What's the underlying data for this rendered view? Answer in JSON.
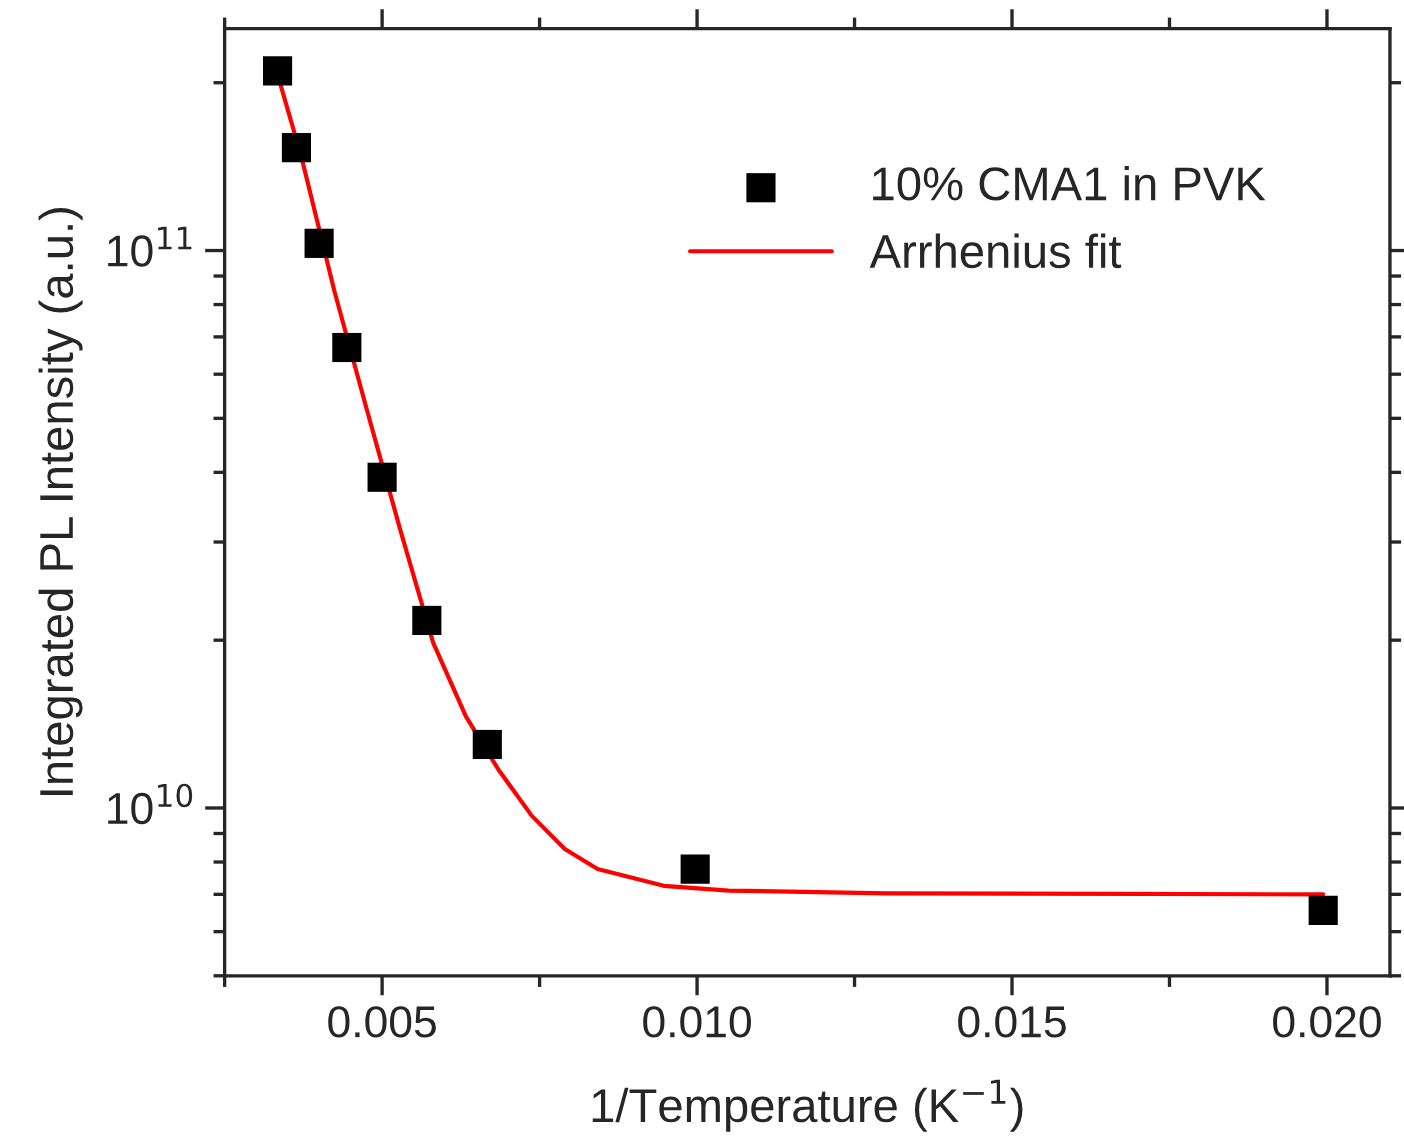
{
  "chart_data": {
    "type": "scatter",
    "xlabel": "1/Temperature (K$^{−1}$)",
    "ylabel": "Integrated PL Intensity (a.u.)",
    "series": [
      {
        "name": "10% CMA1 in PVK",
        "color": "#000000",
        "marker": "square",
        "x": [
          0.00334,
          0.00364,
          0.004,
          0.00444,
          0.005,
          0.00571,
          0.00667,
          0.00997,
          0.01994
        ],
        "values": [
          210000000000.0,
          153000000000.0,
          103000000000.0,
          67000000000.0,
          39200000000.0,
          21700000000.0,
          13000000000.0,
          7770000000.0,
          6550000000.0
        ]
      },
      {
        "name": "Arrhenius fit",
        "type": "line",
        "color": "#ff0000",
        "line_style": "solid",
        "marker": "none",
        "x": [
          0.00334,
          0.00372,
          0.00424,
          0.00476,
          0.00529,
          0.00581,
          0.00633,
          0.00685,
          0.00738,
          0.0079,
          0.00842,
          0.00947,
          0.0105,
          0.013,
          0.01994
        ],
        "values": [
          207000000000.0,
          147000000000.0,
          84800000000.0,
          51700000000.0,
          31500000000.0,
          19800000000.0,
          14600000000.0,
          11700000000.0,
          9670000000.0,
          8440000000.0,
          7770000000.0,
          7250000000.0,
          7110000000.0,
          7030000000.0,
          7000000000.0
        ]
      }
    ],
    "log": "y",
    "xlim": [
      0.0025,
      0.021
    ],
    "ylim": [
      5000000000.0,
      250000000000.0
    ],
    "xticks": [
      {
        "value": 0.005,
        "label": "0.005"
      },
      {
        "value": 0.01,
        "label": "0.010"
      },
      {
        "value": 0.015,
        "label": "0.015"
      },
      {
        "value": 0.02,
        "label": "0.020"
      }
    ],
    "yticks": [
      {
        "value": 10000000000.0,
        "label": "10$^{10}$"
      },
      {
        "value": 100000000000.0,
        "label": "10$^{11}$"
      }
    ],
    "grid": false,
    "legend": "top right"
  }
}
